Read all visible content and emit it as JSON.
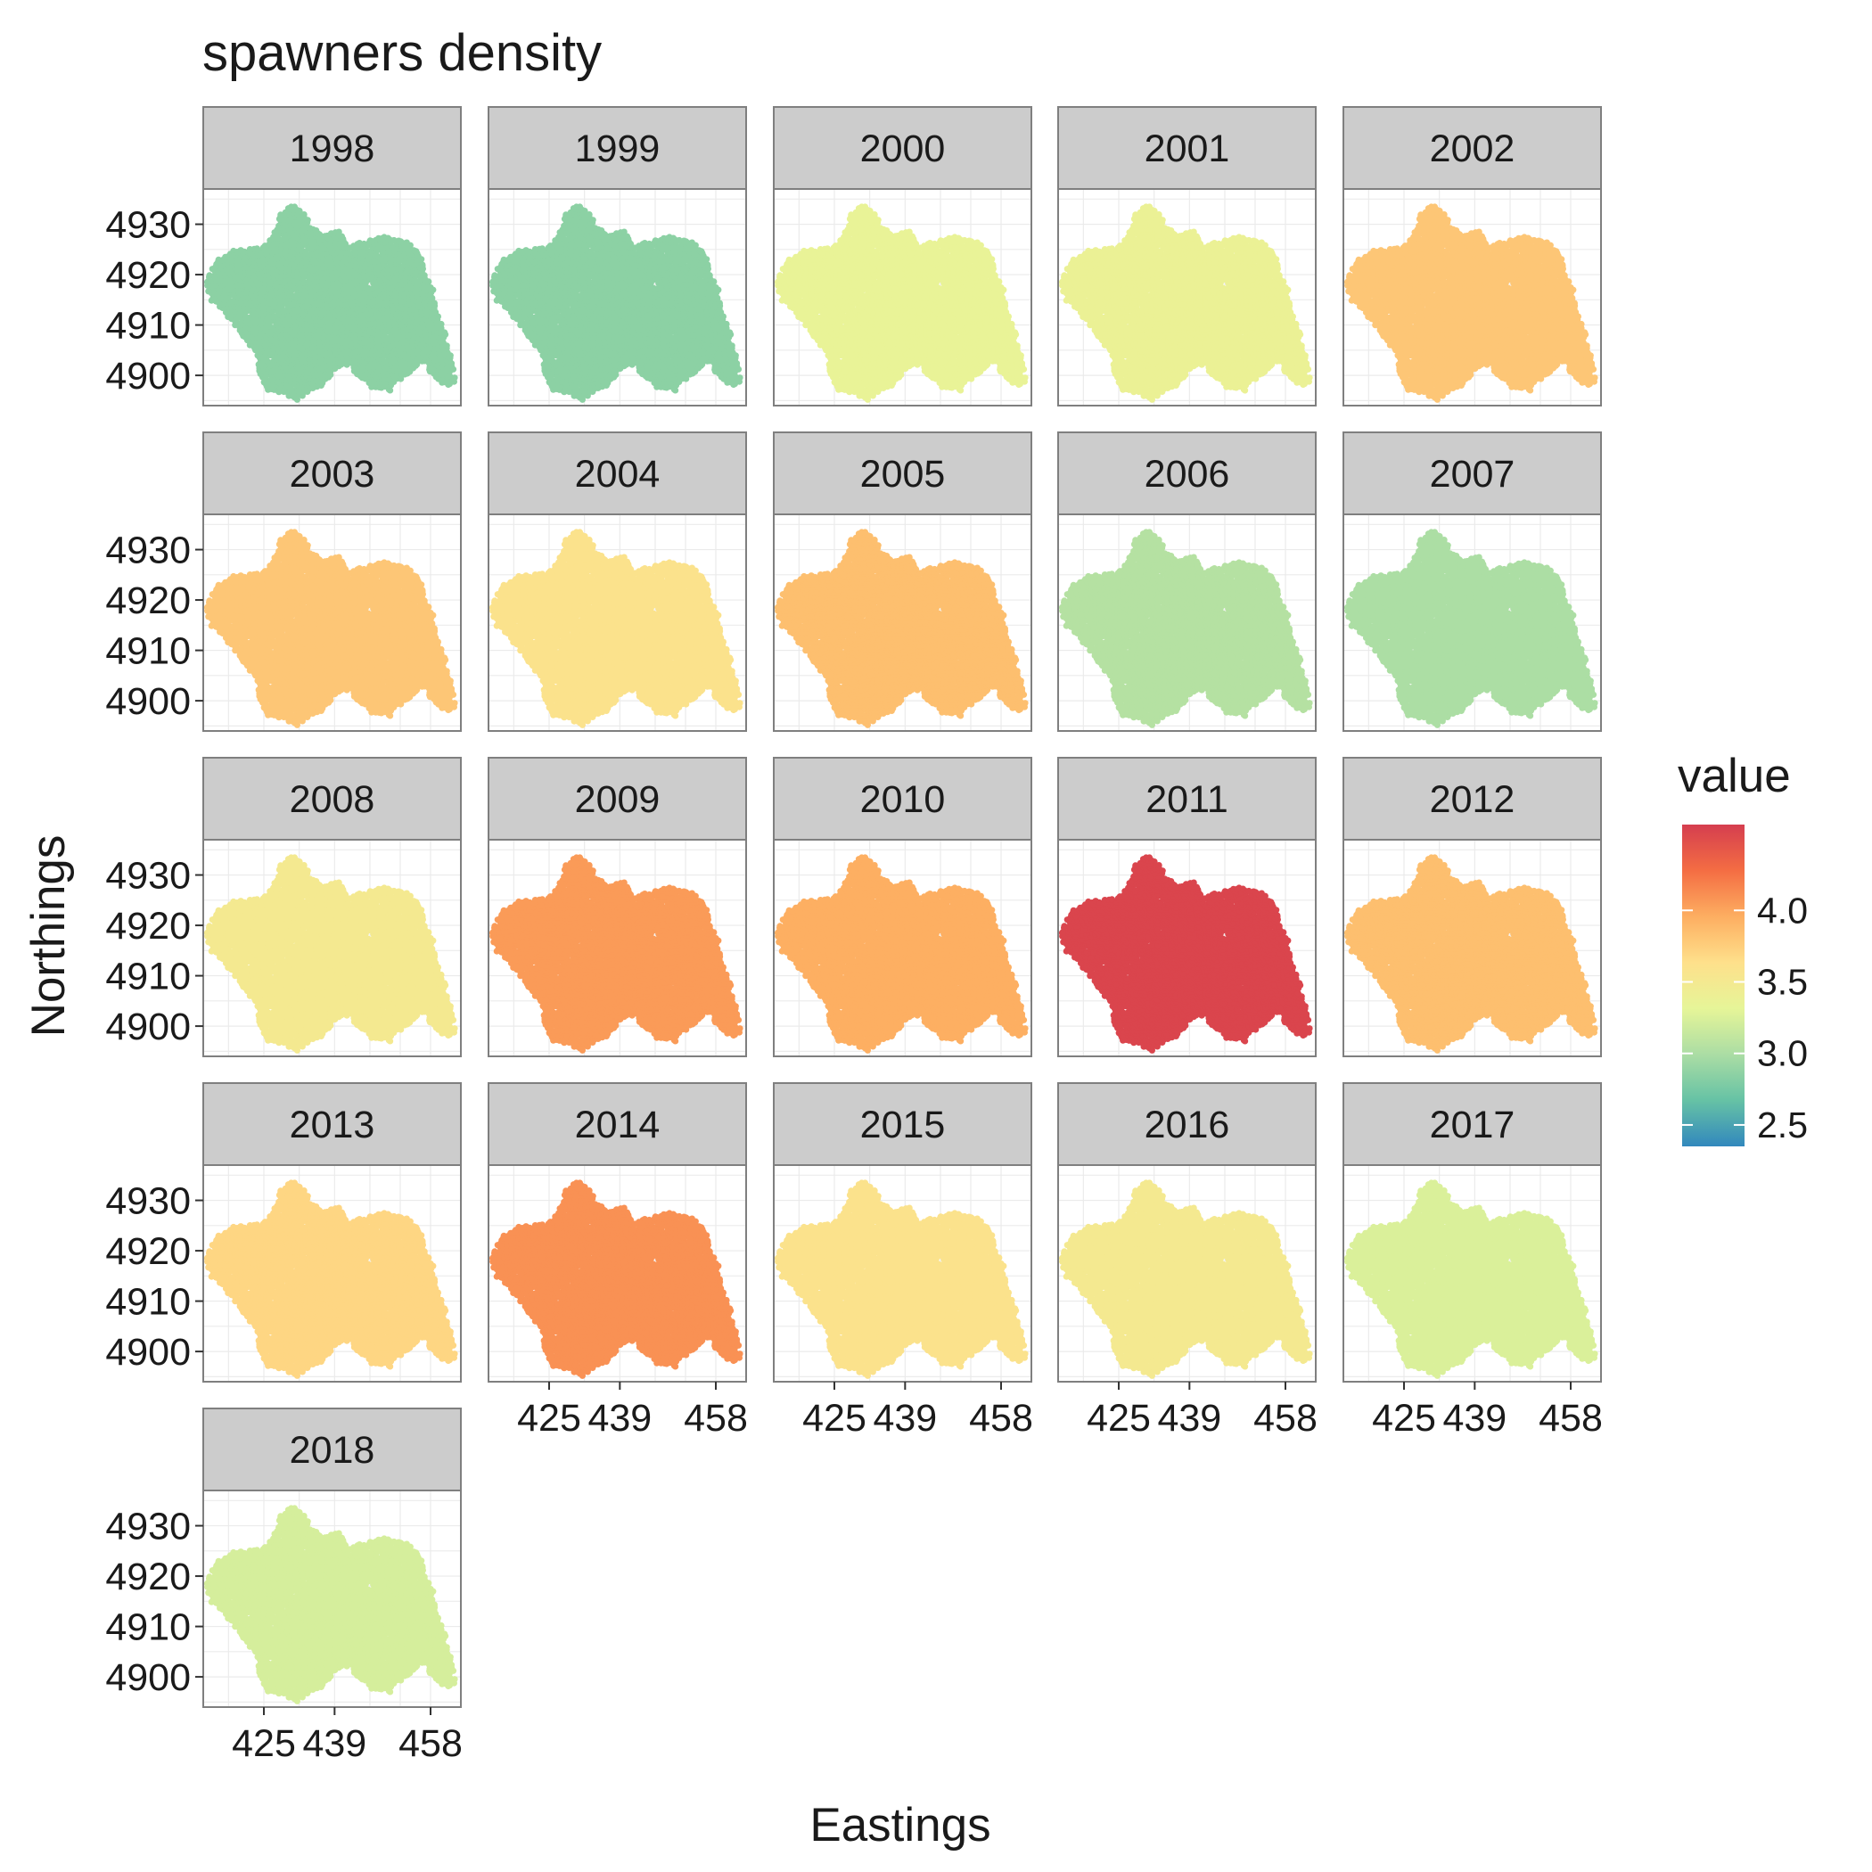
{
  "chart_data": {
    "type": "heatmap",
    "chart_kind": "faceted spatial scatter (point map)",
    "title": "spawners density",
    "xlabel": "Eastings",
    "ylabel": "Northings",
    "x_ticks": [
      425,
      439,
      458
    ],
    "y_ticks": [
      4900,
      4910,
      4920,
      4930
    ],
    "xlim": [
      413,
      464
    ],
    "ylim": [
      4894,
      4937
    ],
    "grid": true,
    "legend": {
      "title": "value",
      "placement": "right",
      "breaks": [
        4.0,
        3.5,
        3.0,
        2.5
      ],
      "range": [
        2.35,
        4.6
      ],
      "palette": [
        "#3288BD",
        "#66C2A5",
        "#ABDDA4",
        "#E6F598",
        "#FEE08B",
        "#FDAE61",
        "#F46D43",
        "#D53E4F"
      ]
    },
    "panels": [
      {
        "year": "1998",
        "value": 2.85
      },
      {
        "year": "1999",
        "value": 2.85
      },
      {
        "year": "2000",
        "value": 3.35
      },
      {
        "year": "2001",
        "value": 3.38
      },
      {
        "year": "2002",
        "value": 3.8
      },
      {
        "year": "2003",
        "value": 3.8
      },
      {
        "year": "2004",
        "value": 3.6
      },
      {
        "year": "2005",
        "value": 3.85
      },
      {
        "year": "2006",
        "value": 3.05
      },
      {
        "year": "2007",
        "value": 3.0
      },
      {
        "year": "2008",
        "value": 3.5
      },
      {
        "year": "2009",
        "value": 4.05
      },
      {
        "year": "2010",
        "value": 3.95
      },
      {
        "year": "2011",
        "value": 4.55
      },
      {
        "year": "2012",
        "value": 3.85
      },
      {
        "year": "2013",
        "value": 3.7
      },
      {
        "year": "2014",
        "value": 4.1
      },
      {
        "year": "2015",
        "value": 3.6
      },
      {
        "year": "2016",
        "value": 3.5
      },
      {
        "year": "2017",
        "value": 3.25
      },
      {
        "year": "2018",
        "value": 3.22
      }
    ]
  }
}
